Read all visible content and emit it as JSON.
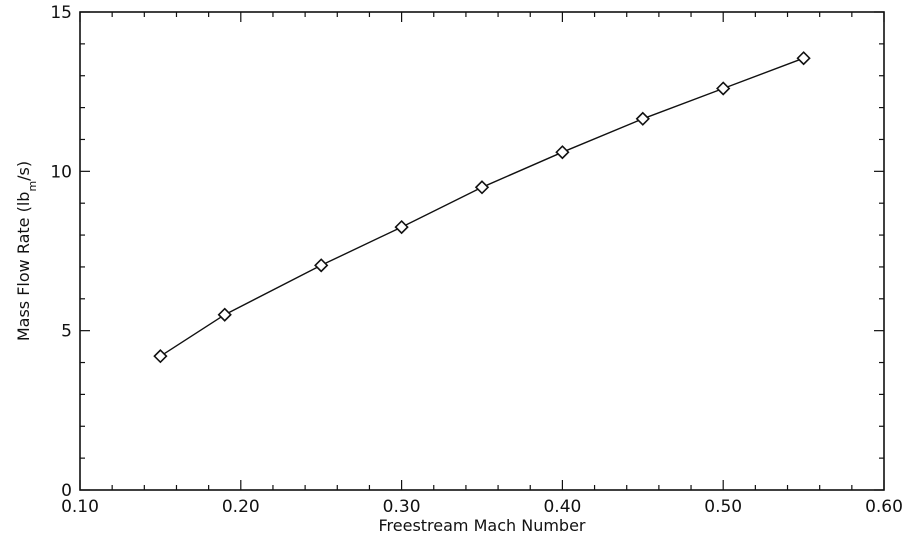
{
  "chart_data": {
    "type": "line",
    "xlabel": "Freestream Mach Number",
    "ylabel_parts": {
      "before": "Mass Flow Rate (lb",
      "subscript": "m",
      "after": "/s)"
    },
    "xlim": [
      0.1,
      0.6
    ],
    "ylim": [
      0,
      15
    ],
    "x_ticks": [
      "0.10",
      "0.20",
      "0.30",
      "0.40",
      "0.50",
      "0.60"
    ],
    "y_ticks": [
      "0",
      "5",
      "10",
      "15"
    ],
    "grid": false,
    "marker": "diamond",
    "series": [
      {
        "x": [
          0.15,
          0.19,
          0.25,
          0.3,
          0.35,
          0.4,
          0.45,
          0.5,
          0.55
        ],
        "y": [
          4.2,
          5.5,
          7.05,
          8.25,
          9.5,
          10.6,
          11.65,
          12.6,
          13.55
        ]
      }
    ]
  }
}
